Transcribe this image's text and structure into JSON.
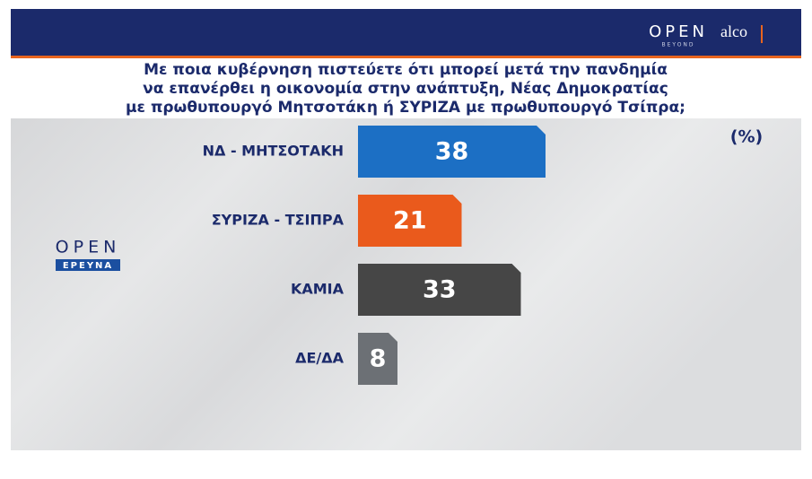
{
  "header": {
    "logo": "OPEN",
    "logo_sub": "BEYOND",
    "partner": "alco"
  },
  "side_logo": {
    "text": "OPEN",
    "sub": "ΕΡΕΥΝΑ"
  },
  "chart_data": {
    "type": "bar",
    "title": [
      "Με ποια κυβέρνηση πιστεύετε ότι μπορεί μετά την πανδημία",
      "να επανέρθει η οικονομία στην  ανάπτυξη, Νέας Δημοκρατίας",
      "με πρωθυπουργό Μητσοτάκη ή ΣΥΡΙΖΑ με πρωθυπουργό Τσίπρα;"
    ],
    "unit_label": "(%)",
    "categories": [
      "ΝΔ - ΜΗΤΣΟΤΑΚΗ",
      "ΣΥΡΙΖΑ - ΤΣΙΠΡΑ",
      "ΚΑΜΙΑ",
      "ΔΕ/ΔΑ"
    ],
    "values": [
      38,
      21,
      33,
      8
    ],
    "colors": [
      "#1c6fc4",
      "#ea5a1c",
      "#464646",
      "#6c7075"
    ]
  }
}
